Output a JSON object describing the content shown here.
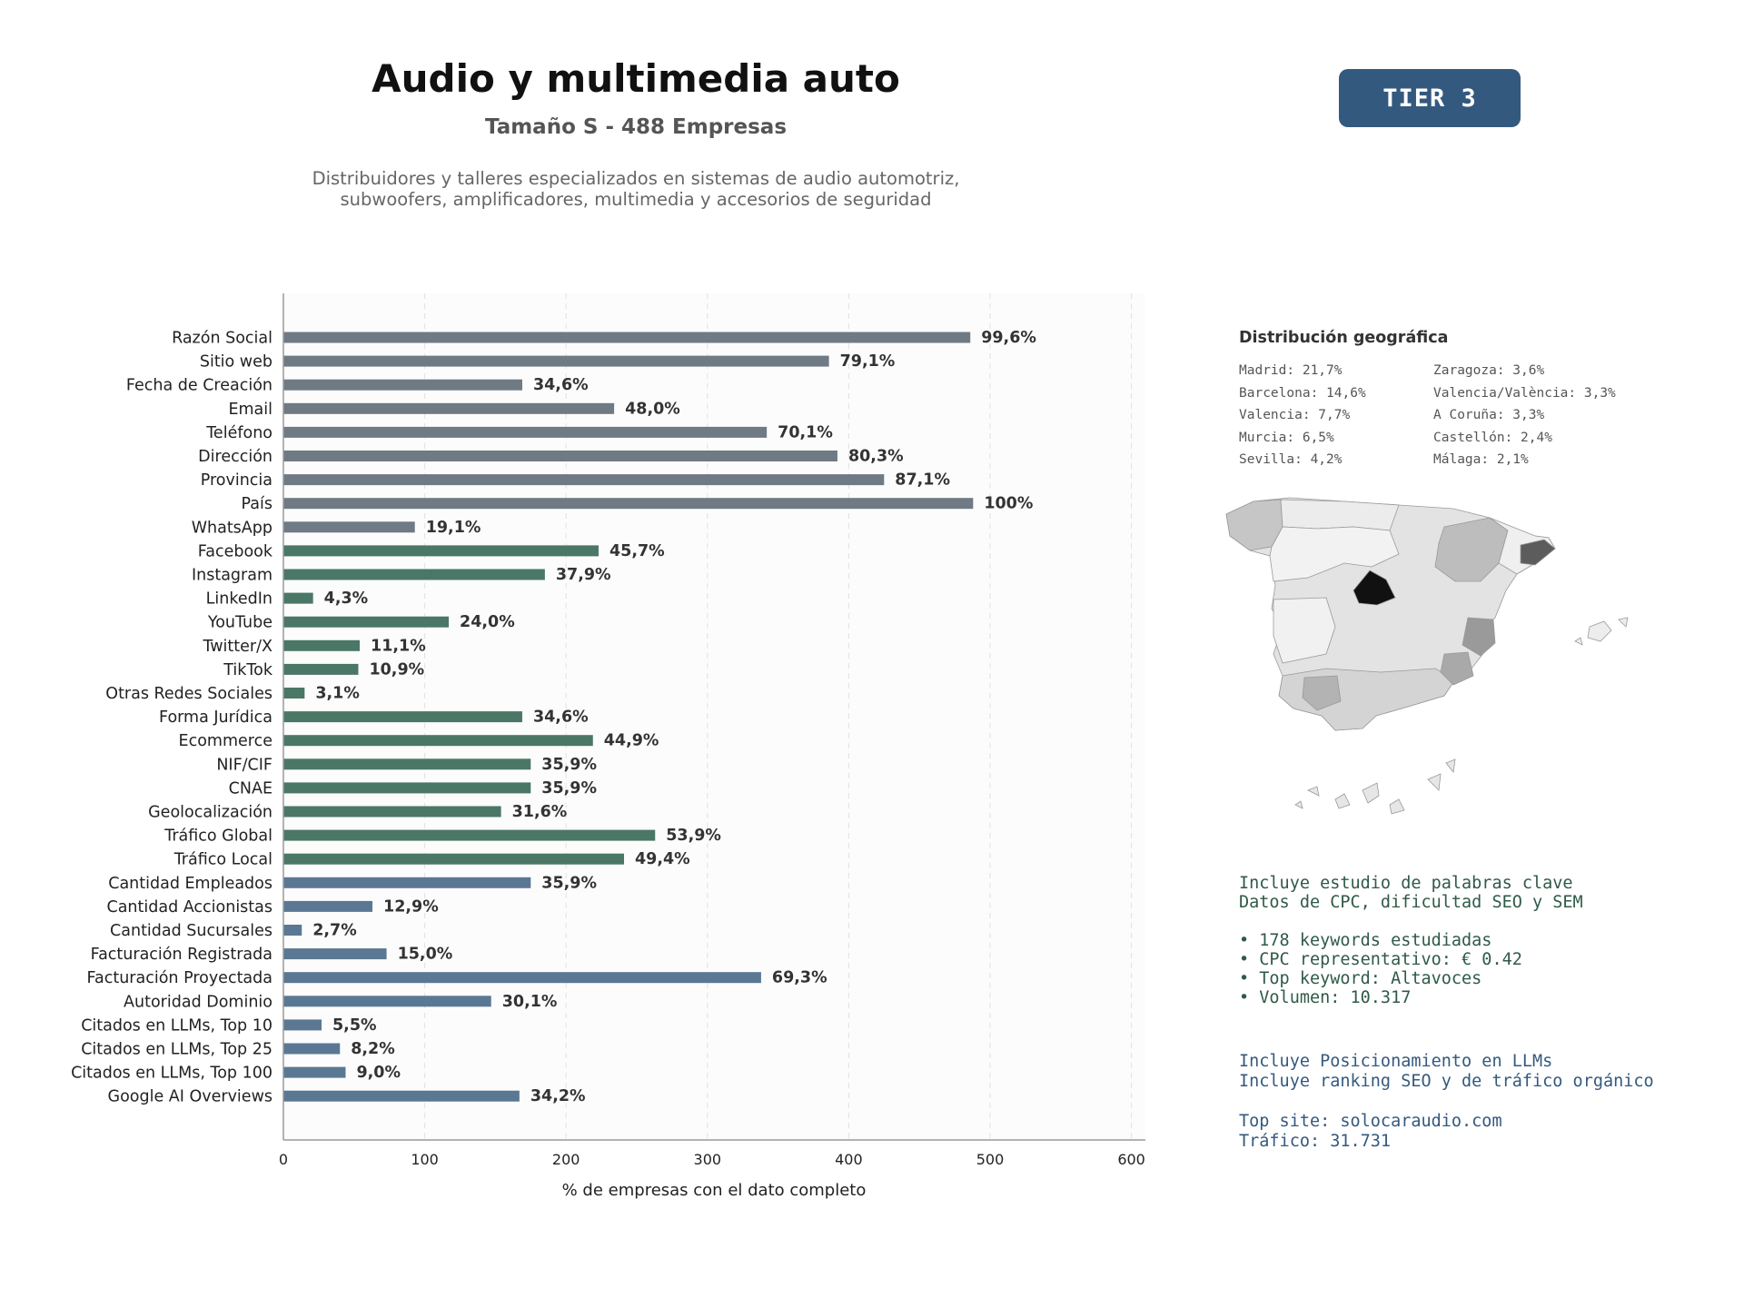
{
  "header": {
    "title": "Audio y multimedia auto",
    "subtitle": "Tamaño S - 488 Empresas",
    "description": "Distribuidores y talleres especializados en sistemas de audio automotriz, subwoofers, amplificadores, multimedia y accesorios de seguridad",
    "tier_label": "TIER 3"
  },
  "colors": {
    "gray": "#6f7a84",
    "green": "#4a7766",
    "blue": "#5a7893",
    "badge": "#34597f"
  },
  "chart_data": {
    "type": "bar",
    "orientation": "horizontal",
    "title": "",
    "xlabel": "% de empresas con el dato completo",
    "ylabel": "",
    "xlim": [
      0,
      610
    ],
    "xticks": [
      0,
      100,
      200,
      300,
      400,
      500,
      600
    ],
    "grid": "x-dashed",
    "categories": [
      "Razón Social",
      "Sitio web",
      "Fecha de Creación",
      "Email",
      "Teléfono",
      "Dirección",
      "Provincia",
      "País",
      "WhatsApp",
      "Facebook",
      "Instagram",
      "LinkedIn",
      "YouTube",
      "Twitter/X",
      "TikTok",
      "Otras Redes Sociales",
      "Forma Jurídica",
      "Ecommerce",
      "NIF/CIF",
      "CNAE",
      "Geolocalización",
      "Tráfico Global",
      "Tráfico Local",
      "Cantidad Empleados",
      "Cantidad Accionistas",
      "Cantidad Sucursales",
      "Facturación Registrada",
      "Facturación Proyectada",
      "Autoridad Dominio",
      "Citados en LLMs, Top 10",
      "Citados en LLMs, Top 25",
      "Citados en LLMs, Top 100",
      "Google AI Overviews"
    ],
    "values": [
      486,
      386,
      169,
      234,
      342,
      392,
      425,
      488,
      93,
      223,
      185,
      21,
      117,
      54,
      53,
      15,
      169,
      219,
      175,
      175,
      154,
      263,
      241,
      175,
      63,
      13,
      73,
      338,
      147,
      27,
      40,
      44,
      167
    ],
    "labels": [
      "99,6%",
      "79,1%",
      "34,6%",
      "48,0%",
      "70,1%",
      "80,3%",
      "87,1%",
      "100%",
      "19,1%",
      "45,7%",
      "37,9%",
      "4,3%",
      "24,0%",
      "11,1%",
      "10,9%",
      "3,1%",
      "34,6%",
      "44,9%",
      "35,9%",
      "35,9%",
      "31,6%",
      "53,9%",
      "49,4%",
      "35,9%",
      "12,9%",
      "2,7%",
      "15,0%",
      "69,3%",
      "30,1%",
      "5,5%",
      "8,2%",
      "9,0%",
      "34,2%"
    ],
    "groups": [
      "gray",
      "gray",
      "gray",
      "gray",
      "gray",
      "gray",
      "gray",
      "gray",
      "gray",
      "green",
      "green",
      "green",
      "green",
      "green",
      "green",
      "green",
      "green",
      "green",
      "green",
      "green",
      "green",
      "green",
      "green",
      "blue",
      "blue",
      "blue",
      "blue",
      "blue",
      "blue",
      "blue",
      "blue",
      "blue",
      "blue"
    ]
  },
  "geo": {
    "title": "Distribución geográfica",
    "items": [
      "Madrid: 21,7%",
      "Zaragoza: 3,6%",
      "Barcelona: 14,6%",
      "Valencia/València: 3,3%",
      "Valencia: 7,7%",
      "A Coruña: 3,3%",
      "Murcia: 6,5%",
      "Castellón: 2,4%",
      "Sevilla: 4,2%",
      "Málaga: 2,1%"
    ]
  },
  "keywords": {
    "line1": "Incluye estudio de palabras clave",
    "line2": "Datos de CPC, dificultad SEO y SEM",
    "bullet1": "• 178 keywords estudiadas",
    "bullet2": "• CPC representativo: € 0.42",
    "bullet3": "• Top keyword: Altavoces",
    "bullet4": "• Volumen: 10.317"
  },
  "llm": {
    "line1": "Incluye Posicionamiento en LLMs",
    "line2": "Incluye ranking SEO y de tráfico orgánico",
    "site": "Top site: solocaraudio.com",
    "traffic": "Tráfico: 31.731"
  }
}
